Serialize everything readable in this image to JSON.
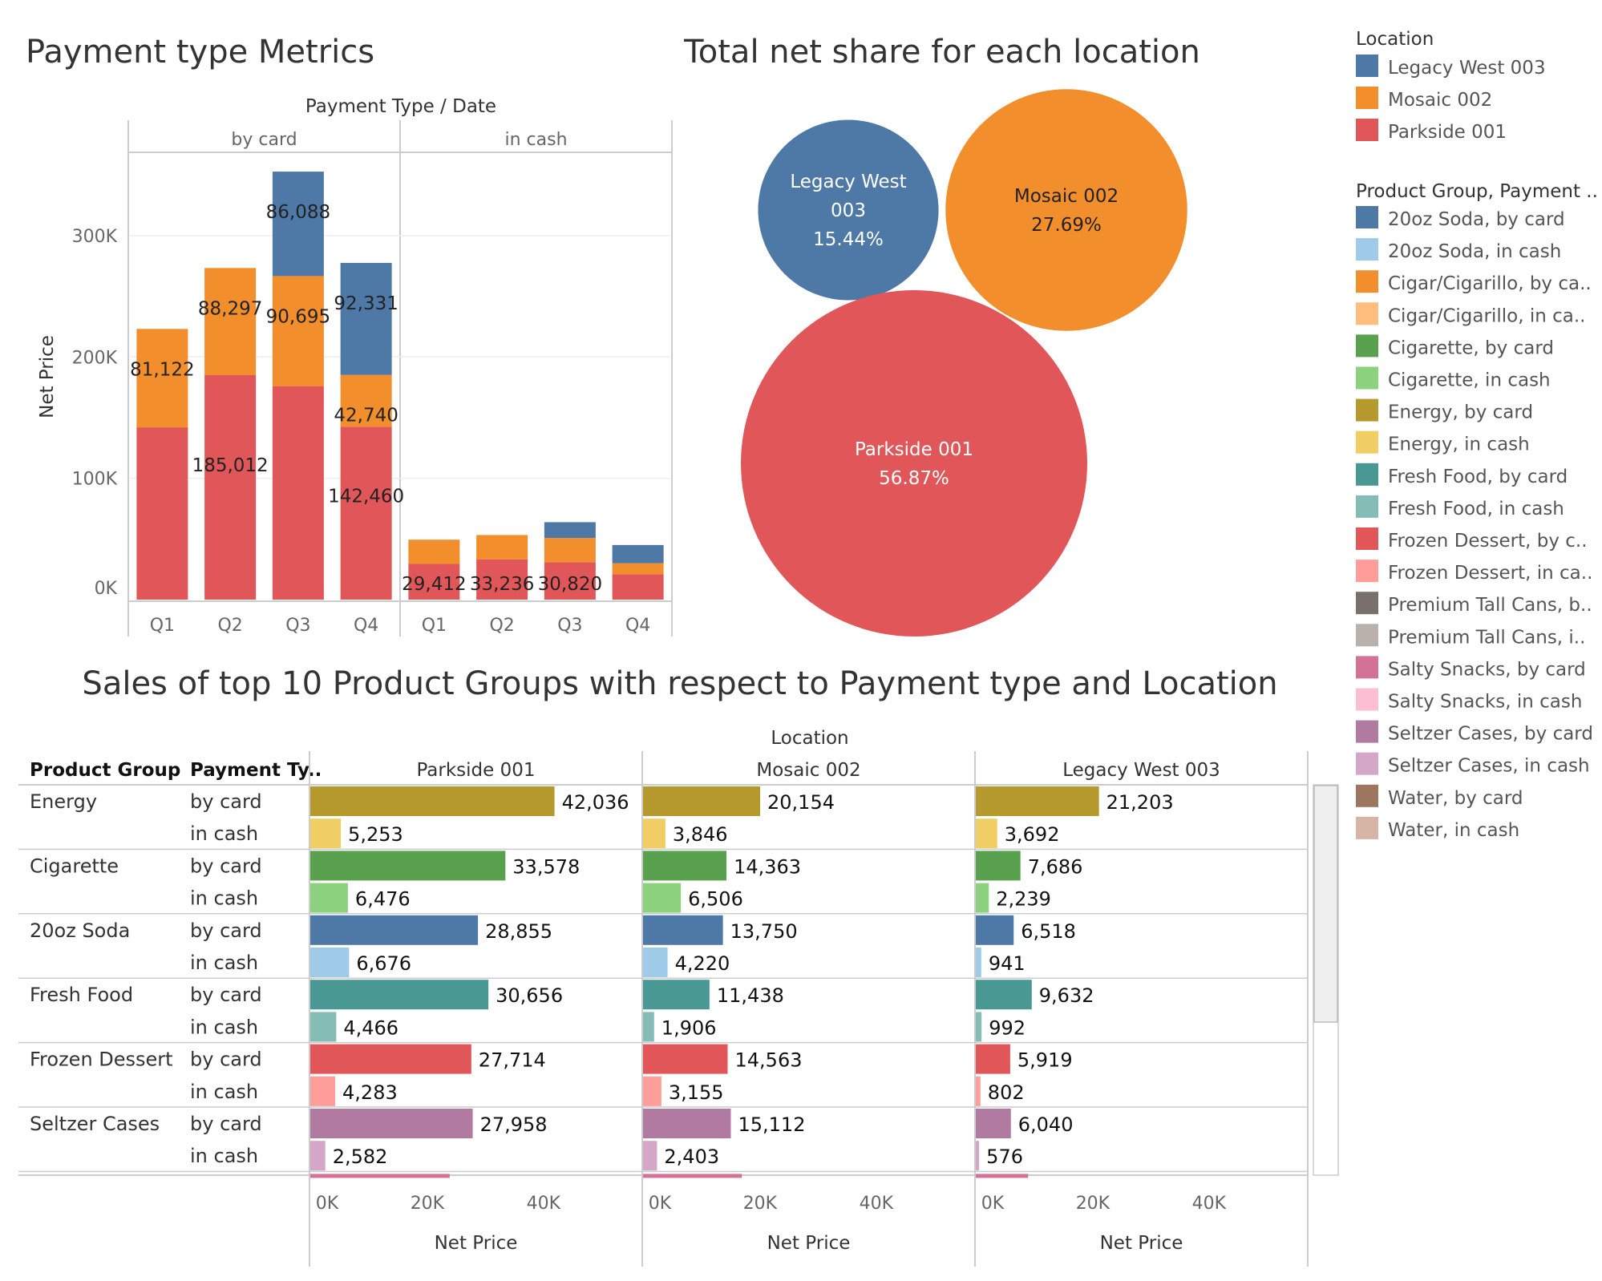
{
  "colors": {
    "parkside": "#e15759",
    "mosaic": "#f28e2b",
    "legacy": "#4e79a7",
    "energy_card": "#b6992d",
    "energy_cash": "#f1ce63",
    "cig_card": "#59a14f",
    "cig_cash": "#8cd17d",
    "soda_card": "#4e79a7",
    "soda_cash": "#a0cbe8",
    "fresh_card": "#499894",
    "fresh_cash": "#86bcb6",
    "frozen_card": "#e15759",
    "frozen_cash": "#ff9d9a",
    "tall_card": "#79706e",
    "tall_cash": "#bab0ac",
    "salty_card": "#d37295",
    "salty_cash": "#fabfd2",
    "seltzer_card": "#b07aa1",
    "seltzer_cash": "#d4a6c8",
    "water_card": "#9d7660",
    "water_cash": "#d7b5a6"
  },
  "chart_data": [
    {
      "type": "bar",
      "title": "Payment type Metrics",
      "column_header": "Payment Type  /  Date",
      "ylabel": "Net Price",
      "ylim": [
        0,
        370000
      ],
      "yticks": [
        0,
        100000,
        200000,
        300000
      ],
      "yticklabels": [
        "0K",
        "100K",
        "200K",
        "300K"
      ],
      "panels": [
        {
          "name": "by card",
          "categories": [
            "Q1",
            "Q2",
            "Q3",
            "Q4"
          ],
          "series": [
            {
              "name": "Parkside 001",
              "values": [
                142000,
                185012,
                176000,
                142460
              ],
              "labels": [
                "",
                "185,012",
                "",
                "142,460"
              ]
            },
            {
              "name": "Mosaic 002",
              "values": [
                81122,
                88297,
                90695,
                42740
              ],
              "labels": [
                "81,122",
                "88,297",
                "90,695",
                "42,740"
              ]
            },
            {
              "name": "Legacy West 003",
              "values": [
                0,
                0,
                86088,
                92331
              ],
              "labels": [
                "",
                "",
                "86,088",
                "92,331"
              ]
            }
          ]
        },
        {
          "name": "in cash",
          "categories": [
            "Q1",
            "Q2",
            "Q3",
            "Q4"
          ],
          "series": [
            {
              "name": "Parkside 001",
              "values": [
                29412,
                33236,
                30820,
                21000
              ],
              "labels": [
                "29,412",
                "33,236",
                "30,820",
                ""
              ]
            },
            {
              "name": "Mosaic 002",
              "values": [
                20000,
                20000,
                20000,
                9000
              ],
              "labels": [
                "",
                "",
                "",
                ""
              ]
            },
            {
              "name": "Legacy West 003",
              "values": [
                0,
                0,
                13000,
                15000
              ],
              "labels": [
                "",
                "",
                "",
                ""
              ]
            }
          ]
        }
      ]
    },
    {
      "type": "bubble",
      "title": "Total net share for each location",
      "items": [
        {
          "name_lines": [
            "Legacy West",
            "003"
          ],
          "value_label": "15.44%",
          "value": 15.44
        },
        {
          "name_lines": [
            "Mosaic 002"
          ],
          "value_label": "27.69%",
          "value": 27.69
        },
        {
          "name_lines": [
            "Parkside 001"
          ],
          "value_label": "56.87%",
          "value": 56.87
        }
      ]
    },
    {
      "type": "bar",
      "title": "Sales of top 10 Product Groups with respect to Payment type and Location",
      "column_header": "Location",
      "row_headers": [
        "Product Group",
        "Payment Ty.."
      ],
      "locations": [
        "Parkside 001",
        "Mosaic 002",
        "Legacy West 003"
      ],
      "xlabel": "Net Price",
      "xlim": [
        0,
        57000
      ],
      "xticks": [
        0,
        20000,
        40000
      ],
      "xticklabels": [
        "0K",
        "20K",
        "40K"
      ],
      "groups": [
        {
          "name": "Energy",
          "rows": [
            {
              "payment": "by card",
              "color": "energy_card",
              "values": [
                42036,
                20154,
                21203
              ],
              "labels": [
                "42,036",
                "20,154",
                "21,203"
              ]
            },
            {
              "payment": "in cash",
              "color": "energy_cash",
              "values": [
                5253,
                3846,
                3692
              ],
              "labels": [
                "5,253",
                "3,846",
                "3,692"
              ]
            }
          ]
        },
        {
          "name": "Cigarette",
          "rows": [
            {
              "payment": "by card",
              "color": "cig_card",
              "values": [
                33578,
                14363,
                7686
              ],
              "labels": [
                "33,578",
                "14,363",
                "7,686"
              ]
            },
            {
              "payment": "in cash",
              "color": "cig_cash",
              "values": [
                6476,
                6506,
                2239
              ],
              "labels": [
                "6,476",
                "6,506",
                "2,239"
              ]
            }
          ]
        },
        {
          "name": "20oz Soda",
          "rows": [
            {
              "payment": "by card",
              "color": "soda_card",
              "values": [
                28855,
                13750,
                6518
              ],
              "labels": [
                "28,855",
                "13,750",
                "6,518"
              ]
            },
            {
              "payment": "in cash",
              "color": "soda_cash",
              "values": [
                6676,
                4220,
                941
              ],
              "labels": [
                "6,676",
                "4,220",
                "941"
              ]
            }
          ]
        },
        {
          "name": "Fresh Food",
          "rows": [
            {
              "payment": "by card",
              "color": "fresh_card",
              "values": [
                30656,
                11438,
                9632
              ],
              "labels": [
                "30,656",
                "11,438",
                "9,632"
              ]
            },
            {
              "payment": "in cash",
              "color": "fresh_cash",
              "values": [
                4466,
                1906,
                992
              ],
              "labels": [
                "4,466",
                "1,906",
                "992"
              ]
            }
          ]
        },
        {
          "name": "Frozen Dessert",
          "rows": [
            {
              "payment": "by card",
              "color": "frozen_card",
              "values": [
                27714,
                14563,
                5919
              ],
              "labels": [
                "27,714",
                "14,563",
                "5,919"
              ]
            },
            {
              "payment": "in cash",
              "color": "frozen_cash",
              "values": [
                4283,
                3155,
                802
              ],
              "labels": [
                "4,283",
                "3,155",
                "802"
              ]
            }
          ]
        },
        {
          "name": "Seltzer Cases",
          "rows": [
            {
              "payment": "by card",
              "color": "seltzer_card",
              "values": [
                27958,
                15112,
                6040
              ],
              "labels": [
                "27,958",
                "15,112",
                "6,040"
              ]
            },
            {
              "payment": "in cash",
              "color": "seltzer_cash",
              "values": [
                2582,
                2403,
                576
              ],
              "labels": [
                "2,582",
                "2,403",
                "576"
              ]
            }
          ]
        }
      ],
      "partial_next_row": {
        "color": "salty_card",
        "values": [
          24000,
          17000,
          9000
        ]
      }
    }
  ],
  "legend": {
    "location_title": "Location",
    "location_items": [
      {
        "label": "Legacy West 003",
        "color": "legacy"
      },
      {
        "label": "Mosaic 002",
        "color": "mosaic"
      },
      {
        "label": "Parkside 001",
        "color": "parkside"
      }
    ],
    "product_title": "Product Group, Payment ..",
    "product_items": [
      {
        "label": "20oz Soda, by card",
        "color": "soda_card"
      },
      {
        "label": "20oz Soda, in cash",
        "color": "soda_cash"
      },
      {
        "label": "Cigar/Cigarillo, by ca..",
        "color": "mosaic"
      },
      {
        "label": "Cigar/Cigarillo, in ca..",
        "color": "#ffbe7d"
      },
      {
        "label": "Cigarette, by card",
        "color": "cig_card"
      },
      {
        "label": "Cigarette, in cash",
        "color": "cig_cash"
      },
      {
        "label": "Energy, by card",
        "color": "energy_card"
      },
      {
        "label": "Energy, in cash",
        "color": "energy_cash"
      },
      {
        "label": "Fresh Food, by card",
        "color": "fresh_card"
      },
      {
        "label": "Fresh Food, in cash",
        "color": "fresh_cash"
      },
      {
        "label": "Frozen Dessert, by c..",
        "color": "frozen_card"
      },
      {
        "label": "Frozen Dessert, in ca..",
        "color": "frozen_cash"
      },
      {
        "label": "Premium Tall Cans, b..",
        "color": "tall_card"
      },
      {
        "label": "Premium Tall Cans, i..",
        "color": "tall_cash"
      },
      {
        "label": "Salty Snacks, by card",
        "color": "salty_card"
      },
      {
        "label": "Salty Snacks, in cash",
        "color": "salty_cash"
      },
      {
        "label": "Seltzer Cases, by card",
        "color": "seltzer_card"
      },
      {
        "label": "Seltzer Cases, in cash",
        "color": "seltzer_cash"
      },
      {
        "label": "Water, by card",
        "color": "water_card"
      },
      {
        "label": "Water, in cash",
        "color": "water_cash"
      }
    ]
  }
}
